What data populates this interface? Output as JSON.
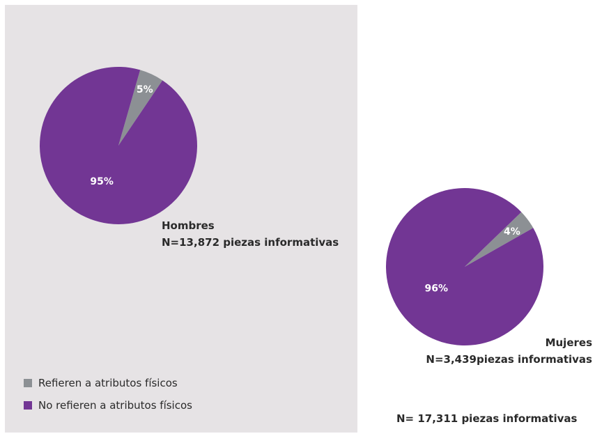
{
  "colors": {
    "physical": "#8c9094",
    "not_physical": "#723694",
    "panel": "#e6e3e5",
    "label_text": "#ffffff"
  },
  "chart_data": [
    {
      "type": "pie",
      "slices": [
        {
          "label": "Refieren a atributos físicos",
          "value": 5,
          "display": "5%"
        },
        {
          "label": "No refieren a atributos físicos",
          "value": 95,
          "display": "95%"
        }
      ],
      "caption": {
        "line1": "Hombres",
        "line2": "N=13,872 piezas informativas"
      }
    },
    {
      "type": "pie",
      "slices": [
        {
          "label": "Refieren a atributos físicos",
          "value": 4,
          "display": "4%"
        },
        {
          "label": "No refieren a atributos físicos",
          "value": 96,
          "display": "96%"
        }
      ],
      "caption": {
        "line1": "Mujeres",
        "line2": "N=3,439piezas informativas"
      }
    }
  ],
  "legend": [
    {
      "label": "Refieren a atributos físicos"
    },
    {
      "label": "No refieren a atributos físicos"
    }
  ],
  "footer_total": "N= 17,311 piezas informativas"
}
